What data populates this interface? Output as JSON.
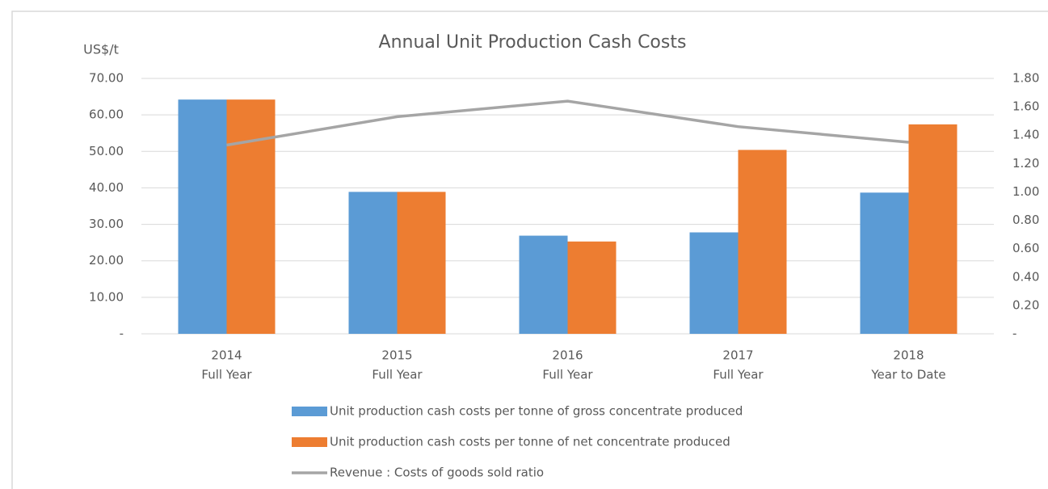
{
  "chart_data": {
    "type": "bar",
    "title": "Annual Unit Production Cash Costs",
    "y_label": "US$/t",
    "categories": [
      [
        "2014",
        "Full Year"
      ],
      [
        "2015",
        "Full Year"
      ],
      [
        "2016",
        "Full Year"
      ],
      [
        "2017",
        "Full Year"
      ],
      [
        "2018",
        "Year to Date"
      ]
    ],
    "series": [
      {
        "name": "Unit production cash costs per tonne of gross concentrate produced",
        "type": "bar",
        "color": "#5b9bd5",
        "values": [
          64.2,
          38.9,
          26.9,
          27.8,
          38.7
        ]
      },
      {
        "name": "Unit production cash costs per tonne of net concentrate produced",
        "type": "bar",
        "color": "#ed7d31",
        "values": [
          64.2,
          38.9,
          25.3,
          50.4,
          57.4
        ]
      },
      {
        "name": "Revenue : Costs of goods sold ratio",
        "type": "line",
        "axis": "y2",
        "color": "#a5a5a5",
        "values": [
          1.33,
          1.53,
          1.64,
          1.46,
          1.35
        ]
      }
    ],
    "ylim": [
      0,
      70
    ],
    "yticks": [
      {
        "value": 0,
        "label": "-"
      },
      {
        "value": 10,
        "label": "10.00"
      },
      {
        "value": 20,
        "label": "20.00"
      },
      {
        "value": 30,
        "label": "30.00"
      },
      {
        "value": 40,
        "label": "40.00"
      },
      {
        "value": 50,
        "label": "50.00"
      },
      {
        "value": 60,
        "label": "60.00"
      },
      {
        "value": 70,
        "label": "70.00"
      }
    ],
    "y2lim": [
      0,
      1.8
    ],
    "y2ticks": [
      {
        "value": 0,
        "label": "-"
      },
      {
        "value": 0.2,
        "label": "0.20"
      },
      {
        "value": 0.4,
        "label": "0.40"
      },
      {
        "value": 0.6,
        "label": "0.60"
      },
      {
        "value": 0.8,
        "label": "0.80"
      },
      {
        "value": 1,
        "label": "1.00"
      },
      {
        "value": 1.2,
        "label": "1.20"
      },
      {
        "value": 1.4,
        "label": "1.40"
      },
      {
        "value": 1.6,
        "label": "1.60"
      },
      {
        "value": 1.8,
        "label": "1.80"
      }
    ],
    "grid": true
  }
}
